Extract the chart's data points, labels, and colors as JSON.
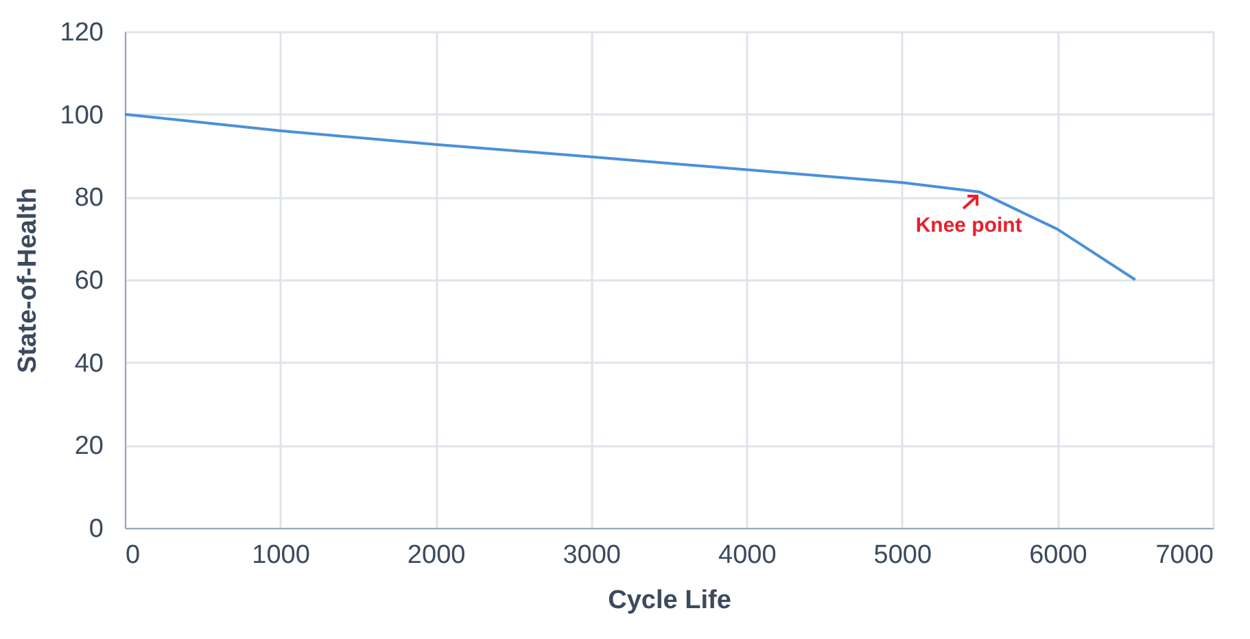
{
  "chart_data": {
    "type": "line",
    "xlabel": "Cycle Life",
    "ylabel": "State-of-Health",
    "x": [
      0,
      1000,
      2000,
      3000,
      4000,
      5000,
      5500,
      6000,
      6500
    ],
    "series": [
      {
        "color": "#4a90d9",
        "values": [
          100,
          96,
          92.7,
          89.7,
          86.6,
          83.5,
          81.2,
          72.2,
          60
        ]
      }
    ],
    "xlim": [
      0,
      7000
    ],
    "xticks": [
      0,
      1000,
      2000,
      3000,
      4000,
      5000,
      6000,
      7000
    ],
    "ylim": [
      0,
      120
    ],
    "yticks": [
      0,
      20,
      40,
      60,
      80,
      100,
      120
    ],
    "grid": true,
    "annotations": [
      {
        "text": "Knee point",
        "x": 5500,
        "y": 81.2
      }
    ]
  }
}
